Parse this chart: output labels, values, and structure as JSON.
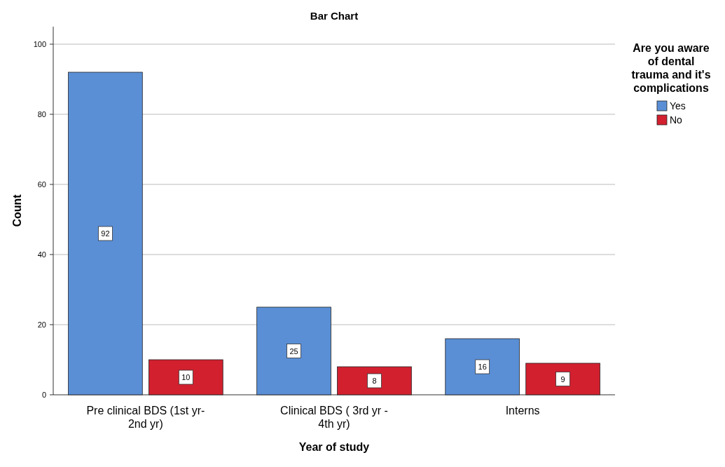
{
  "chart_data": {
    "type": "bar",
    "title": "Bar Chart",
    "xlabel": "Year of study",
    "ylabel": "Count",
    "legend_title": "Are you aware of dental trauma and it's complications",
    "categories": [
      "Pre clinical BDS (1st yr-2nd yr)",
      "Clinical BDS ( 3rd yr - 4th yr)",
      "Interns"
    ],
    "series": [
      {
        "name": "Yes",
        "color": "#5a8fd6",
        "values": [
          92,
          25,
          16
        ]
      },
      {
        "name": "No",
        "color": "#d2202f",
        "values": [
          10,
          8,
          9
        ]
      }
    ],
    "ylim": [
      0,
      105
    ],
    "yticks": [
      0,
      20,
      40,
      60,
      80,
      100
    ],
    "grid": "y",
    "legend": "top right",
    "data_labels": true
  }
}
